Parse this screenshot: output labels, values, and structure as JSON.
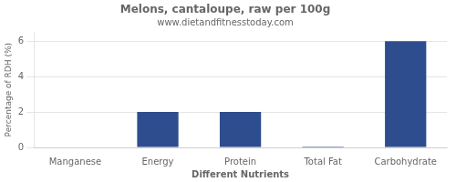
{
  "chart_data": {
    "type": "bar",
    "title": "Melons, cantaloupe, raw per 100g",
    "subtitle": "www.dietandfitnesstoday.com",
    "xlabel": "Different Nutrients",
    "ylabel": "Percentage of RDH (%)",
    "categories": [
      "Manganese",
      "Energy",
      "Protein",
      "Total Fat",
      "Carbohydrate"
    ],
    "values": [
      0.0,
      2.0,
      2.0,
      0.05,
      6.0
    ],
    "color": "#2e4d8e",
    "ylim": [
      0,
      6.5
    ],
    "yticks": [
      0,
      2,
      4,
      6
    ],
    "grid": true
  }
}
